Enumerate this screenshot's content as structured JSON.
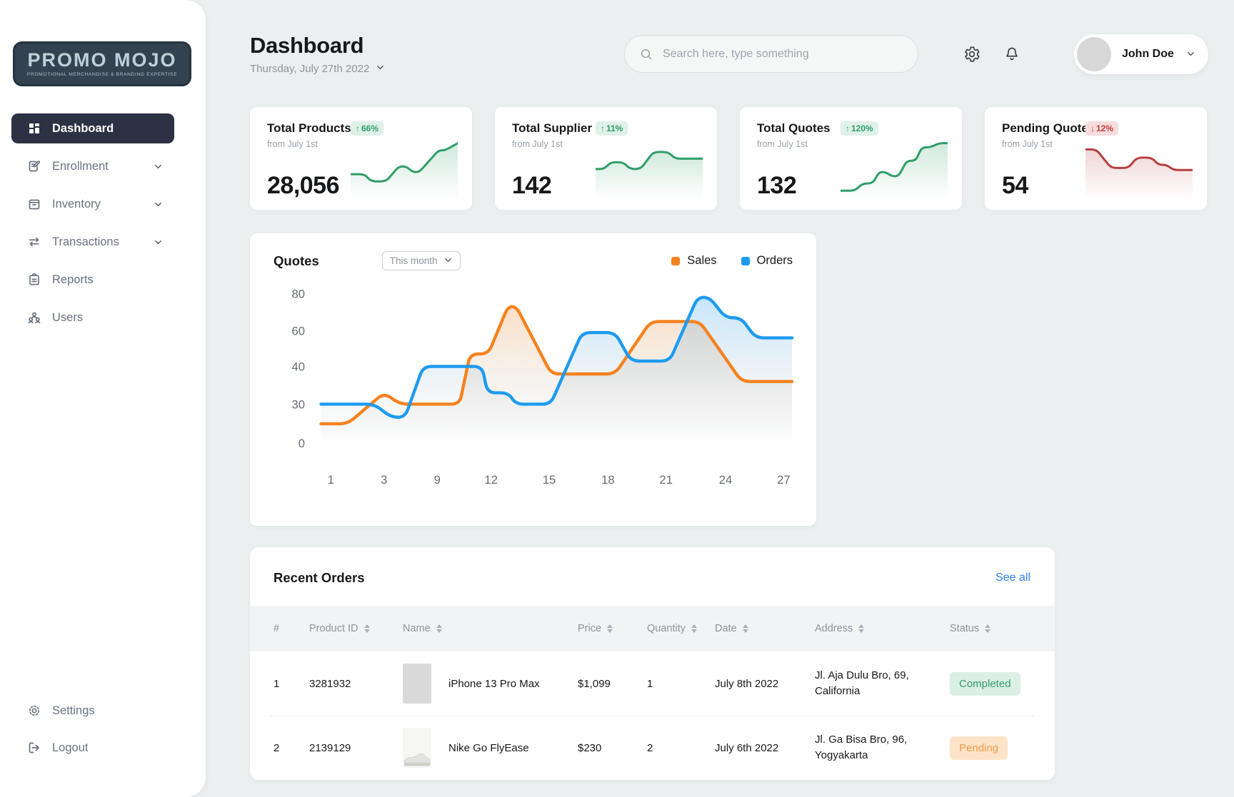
{
  "sidebar": {
    "logo": {
      "title": "PROMO MOJO",
      "subtitle": "PROMOTIONAL MERCHANDISE & BRANDING EXPERTISE"
    },
    "items": [
      {
        "label": "Dashboard",
        "icon": "dashboard-icon",
        "active": true,
        "expandable": false
      },
      {
        "label": "Enrollment",
        "icon": "enrollment-icon",
        "active": false,
        "expandable": true
      },
      {
        "label": "Inventory",
        "icon": "inventory-icon",
        "active": false,
        "expandable": true
      },
      {
        "label": "Transactions",
        "icon": "transactions-icon",
        "active": false,
        "expandable": true
      },
      {
        "label": "Reports",
        "icon": "reports-icon",
        "active": false,
        "expandable": false
      },
      {
        "label": "Users",
        "icon": "users-icon",
        "active": false,
        "expandable": false
      }
    ],
    "footer_items": [
      {
        "label": "Settings",
        "icon": "settings-icon"
      },
      {
        "label": "Logout",
        "icon": "logout-icon"
      }
    ]
  },
  "header": {
    "title": "Dashboard",
    "date": "Thursday, July 27th 2022",
    "search_placeholder": "Search here, type something",
    "user": {
      "name": "John Doe"
    }
  },
  "stat_cards": [
    {
      "title": "Total Products",
      "subtitle": "from July 1st",
      "value": "28,056",
      "change": "66%",
      "direction": "up",
      "trend": [
        [
          0,
          40
        ],
        [
          13,
          40
        ],
        [
          19,
          26
        ],
        [
          33,
          26
        ],
        [
          45,
          55
        ],
        [
          52,
          55
        ],
        [
          58,
          44
        ],
        [
          64,
          44
        ],
        [
          82,
          86
        ],
        [
          88,
          86
        ],
        [
          100,
          100
        ]
      ]
    },
    {
      "title": "Total Supplier",
      "subtitle": "from July 1st",
      "value": "142",
      "change": "11%",
      "direction": "up",
      "trend": [
        [
          0,
          50
        ],
        [
          8,
          50
        ],
        [
          14,
          63
        ],
        [
          26,
          63
        ],
        [
          32,
          50
        ],
        [
          42,
          50
        ],
        [
          54,
          83
        ],
        [
          68,
          83
        ],
        [
          74,
          70
        ],
        [
          100,
          70
        ]
      ]
    },
    {
      "title": "Total Quotes",
      "subtitle": "from July 1st",
      "value": "132",
      "change": "120%",
      "direction": "up",
      "trend": [
        [
          0,
          8
        ],
        [
          14,
          8
        ],
        [
          20,
          22
        ],
        [
          30,
          22
        ],
        [
          36,
          44
        ],
        [
          42,
          44
        ],
        [
          48,
          36
        ],
        [
          54,
          36
        ],
        [
          62,
          66
        ],
        [
          70,
          66
        ],
        [
          76,
          92
        ],
        [
          84,
          92
        ],
        [
          92,
          100
        ],
        [
          100,
          100
        ]
      ]
    },
    {
      "title": "Pending Quotes",
      "subtitle": "from July 1st",
      "value": "54",
      "change": "12%",
      "direction": "down",
      "trend": [
        [
          0,
          88
        ],
        [
          10,
          88
        ],
        [
          24,
          52
        ],
        [
          40,
          52
        ],
        [
          48,
          72
        ],
        [
          62,
          72
        ],
        [
          68,
          58
        ],
        [
          76,
          58
        ],
        [
          82,
          48
        ],
        [
          100,
          48
        ]
      ]
    }
  ],
  "chart_data": {
    "type": "line",
    "title": "Quotes",
    "filter": "This month",
    "legend_position": "top-right",
    "grid": false,
    "y_axis": {
      "ticks": [
        80,
        60,
        40,
        30,
        0
      ],
      "note": "ticks equally spaced (non-linear scale)"
    },
    "x_axis": {
      "ticks": [
        1,
        3,
        9,
        12,
        15,
        18,
        21,
        24,
        27
      ]
    },
    "series": [
      {
        "name": "Sales",
        "color": "#F5821F",
        "points": [
          [
            7,
            15
          ],
          [
            45,
            15
          ],
          [
            97,
            33
          ],
          [
            120,
            30
          ],
          [
            205,
            30
          ],
          [
            220,
            47
          ],
          [
            246,
            47
          ],
          [
            274,
            73
          ],
          [
            286,
            73
          ],
          [
            336,
            38
          ],
          [
            427,
            38
          ],
          [
            478,
            65
          ],
          [
            548,
            65
          ],
          [
            608,
            36
          ],
          [
            680,
            36
          ]
        ]
      },
      {
        "name": "Orders",
        "color": "#1E9BF0",
        "points": [
          [
            7,
            30
          ],
          [
            83,
            30
          ],
          [
            107,
            20
          ],
          [
            127,
            20
          ],
          [
            153,
            40
          ],
          [
            237,
            40
          ],
          [
            245,
            33
          ],
          [
            275,
            33
          ],
          [
            285,
            30
          ],
          [
            335,
            30
          ],
          [
            380,
            59
          ],
          [
            427,
            59
          ],
          [
            450,
            43
          ],
          [
            505,
            43
          ],
          [
            545,
            78
          ],
          [
            562,
            78
          ],
          [
            585,
            67
          ],
          [
            607,
            67
          ],
          [
            628,
            56
          ],
          [
            680,
            56
          ]
        ]
      }
    ],
    "points_format": "[x_position_0_to_680, value_on_y_axis]"
  },
  "orders": {
    "title": "Recent Orders",
    "link": "See all",
    "columns": [
      {
        "label": "#",
        "sortable": false
      },
      {
        "label": "Product ID",
        "sortable": true
      },
      {
        "label": "Name",
        "sortable": true
      },
      {
        "label": "Price",
        "sortable": true
      },
      {
        "label": "Quantity",
        "sortable": true
      },
      {
        "label": "Date",
        "sortable": true
      },
      {
        "label": "Address",
        "sortable": true
      },
      {
        "label": "Status",
        "sortable": true
      }
    ],
    "rows": [
      {
        "num": "1",
        "product_id": "3281932",
        "name": "iPhone 13 Pro Max",
        "thumb": "iphone-thumb",
        "price": "$1,099",
        "quantity": "1",
        "date": "July 8th 2022",
        "address": "Jl. Aja Dulu Bro, 69, California",
        "status": "Completed"
      },
      {
        "num": "2",
        "product_id": "2139129",
        "name": "Nike Go FlyEase",
        "thumb": "shoe-thumb",
        "price": "$230",
        "quantity": "2",
        "date": "July 6th 2022",
        "address": "Jl. Ga Bisa Bro, 96, Yogyakarta",
        "status": "Pending"
      }
    ]
  },
  "colors": {
    "page_bg": "#ECEFF0",
    "sidebar_active_bg": "#2C3144",
    "sales_orange": "#F5821F",
    "orders_blue": "#1E9BF0",
    "link_blue": "#2F80ED",
    "up_green": "#2F9E68",
    "up_green_bg": "#DFF1E8",
    "down_red": "#C43D3D",
    "down_red_bg": "#F6DCDC",
    "spark_green": "#2F9E68",
    "spark_red": "#B64040",
    "statuses": {
      "Completed": {
        "text": "#2F9E68",
        "bg": "#DCEFE4"
      },
      "Pending": {
        "text": "#F2994A",
        "bg": "#FDE4C8"
      }
    }
  }
}
